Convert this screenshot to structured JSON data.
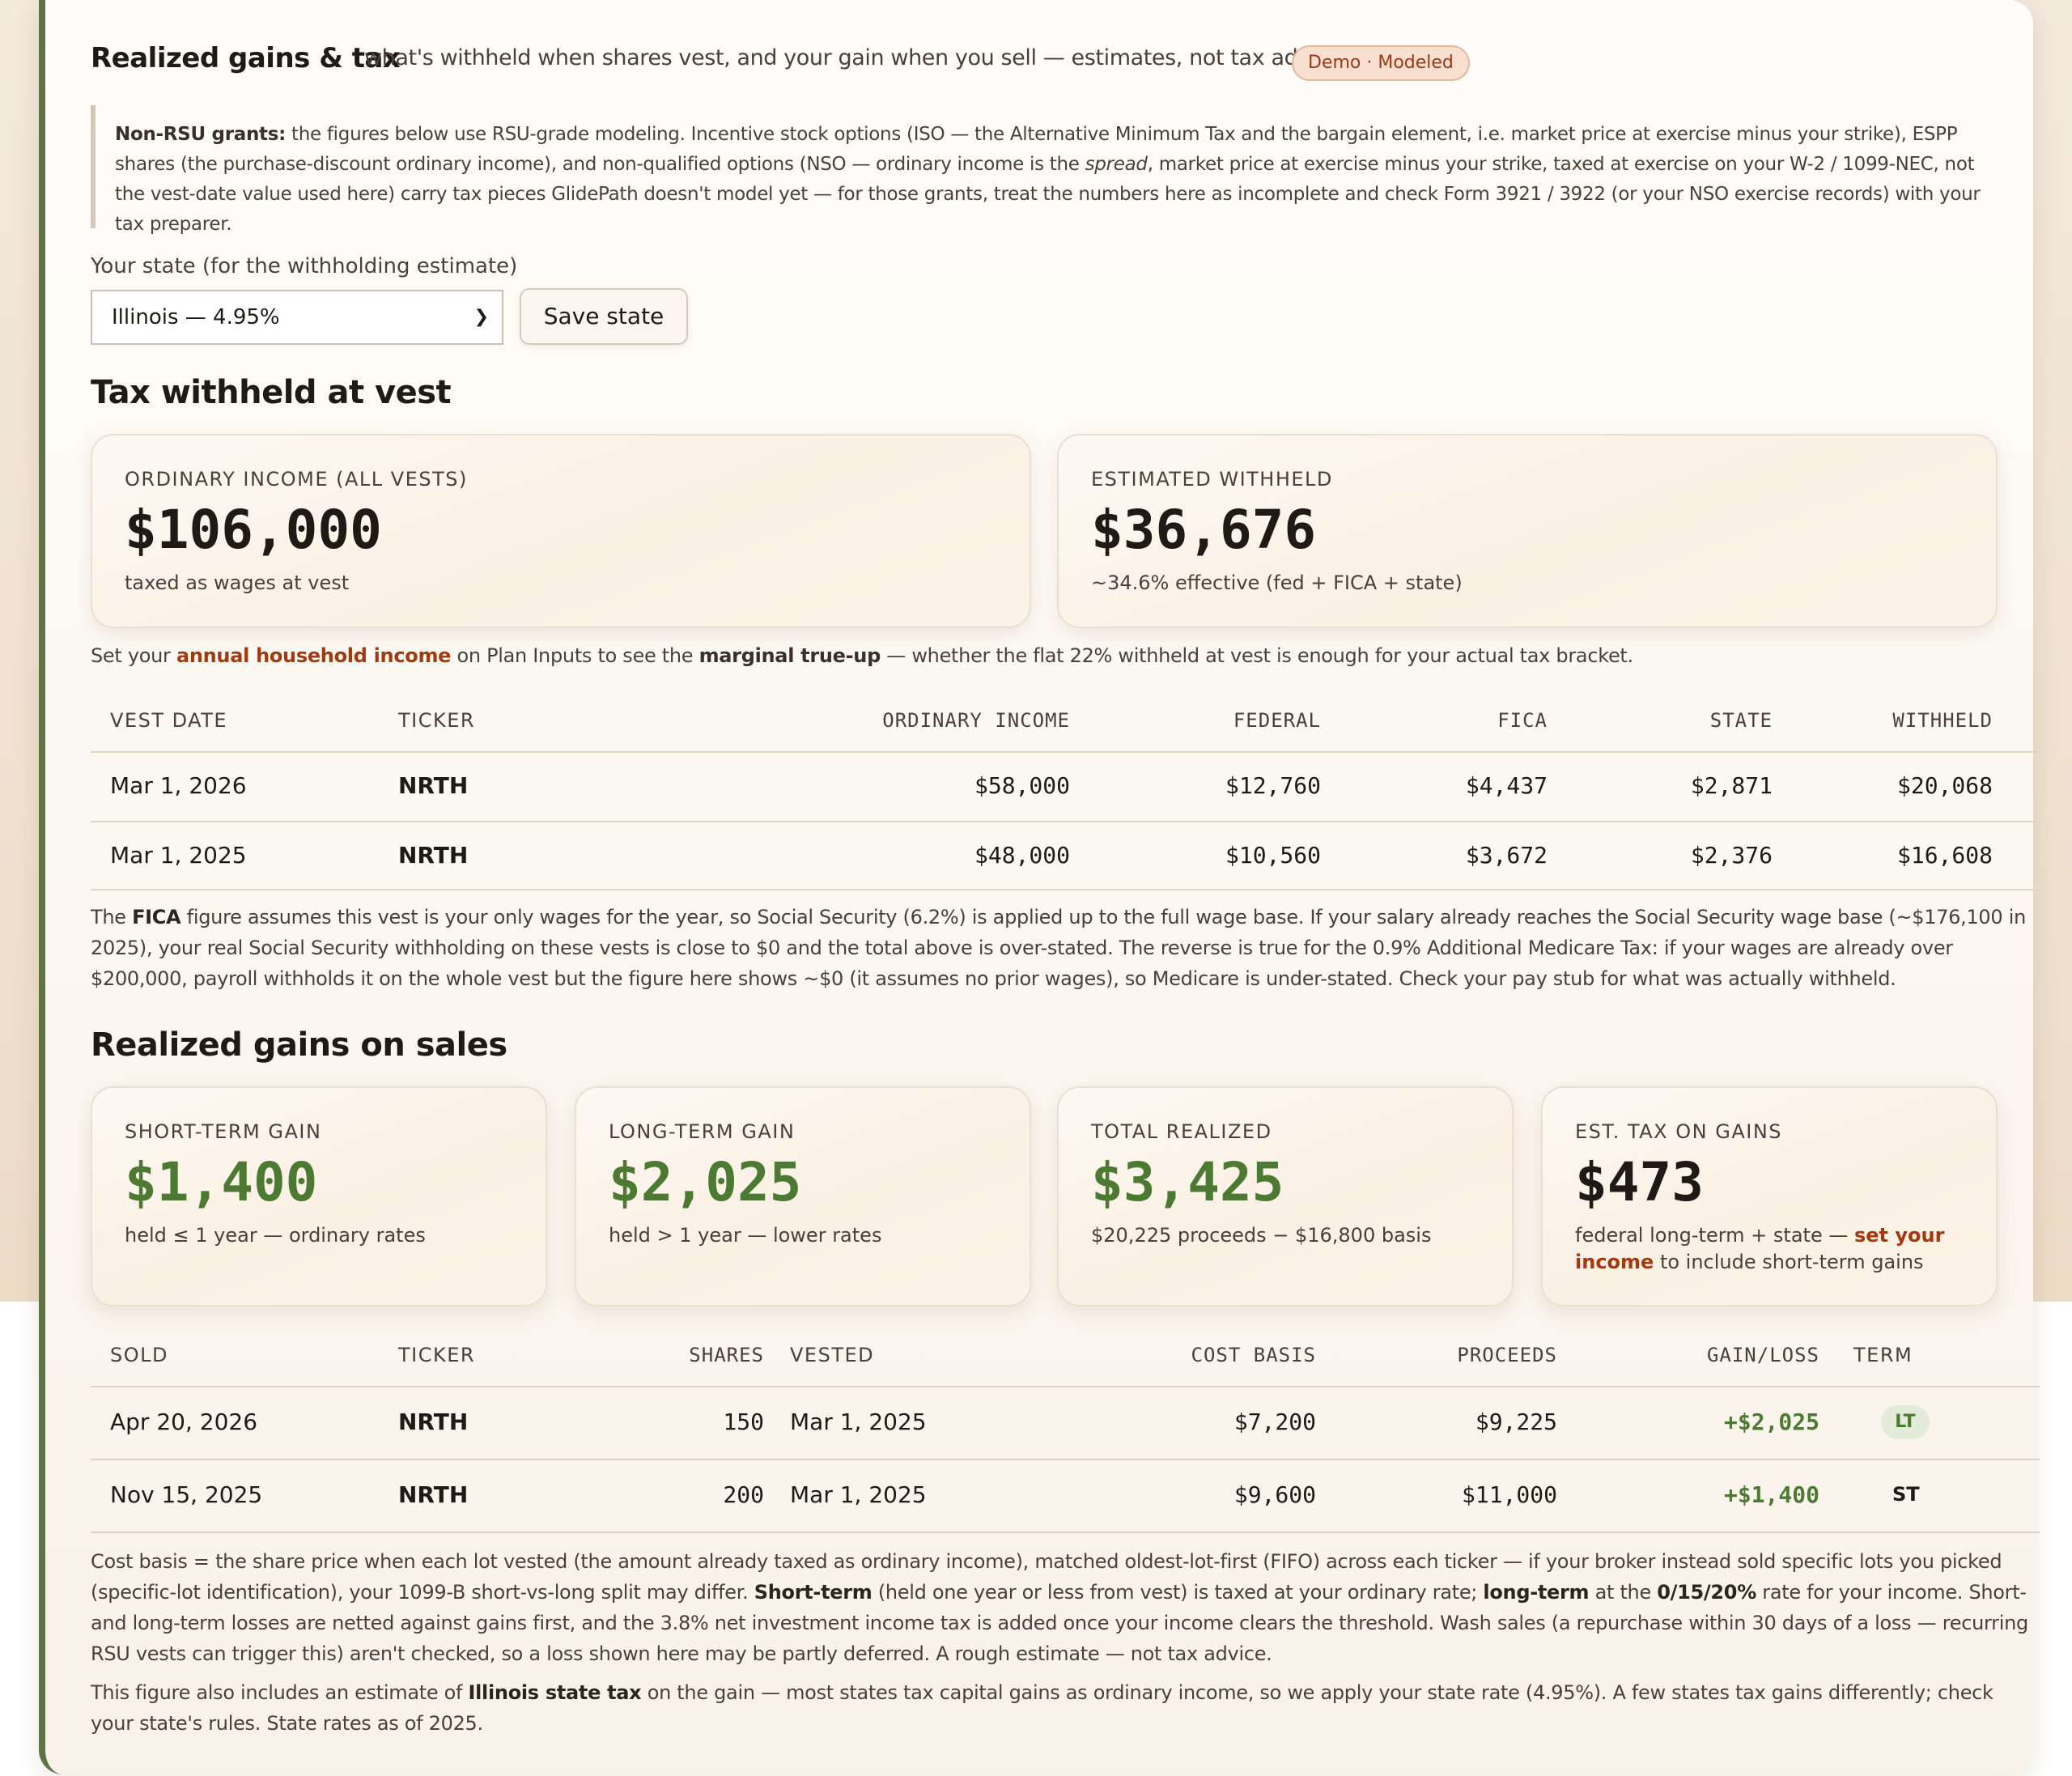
{
  "header": {
    "title": "Realized gains & tax",
    "subtitle": "what's withheld when shares vest, and your gain when you sell — estimates, not tax advice",
    "badge": "Demo · Modeled"
  },
  "note": {
    "lead": "Non-RSU grants:",
    "text_1": " the figures below use RSU-grade modeling. Incentive stock options (ISO — the Alternative Minimum Tax and the bargain element, i.e. market price at exercise minus your strike), ESPP shares (the purchase-discount ordinary income), and non-qualified options (NSO — ordinary income is the ",
    "emphasis": "spread",
    "text_2": ", market price at exercise minus your strike, taxed at exercise on your W-2 / 1099-NEC, not the vest-date value used here) carry tax pieces GlidePath doesn't model yet — for those grants, treat the numbers here as incomplete and check Form 3921 / 3922 (or your NSO exercise records) with your tax preparer."
  },
  "state": {
    "label": "Your state (for the withholding estimate)",
    "selected": "Illinois — 4.95%",
    "save_label": "Save state"
  },
  "withheld_section": {
    "heading": "Tax withheld at vest",
    "cards": [
      {
        "label": "ORDINARY INCOME (ALL VESTS)",
        "value": "$106,000",
        "sub": "taxed as wages at vest"
      },
      {
        "label": "ESTIMATED WITHHELD",
        "value": "$36,676",
        "sub": "~34.6% effective (fed + FICA + state)"
      }
    ],
    "hint": {
      "pre": "Set your ",
      "link": "annual household income",
      "mid": " on Plan Inputs to see the ",
      "bold": "marginal true-up",
      "post": " — whether the flat 22% withheld at vest is enough for your actual tax bracket."
    },
    "table": {
      "headers": {
        "vest_date": "VEST DATE",
        "ticker": "TICKER",
        "ordinary": "ORDINARY INCOME",
        "federal": "FEDERAL",
        "fica": "FICA",
        "state": "STATE",
        "withheld": "WITHHELD"
      },
      "rows": [
        {
          "vest_date": "Mar 1, 2026",
          "ticker": "NRTH",
          "ordinary": "$58,000",
          "federal": "$12,760",
          "fica": "$4,437",
          "state": "$2,871",
          "withheld": "$20,068"
        },
        {
          "vest_date": "Mar 1, 2025",
          "ticker": "NRTH",
          "ordinary": "$48,000",
          "federal": "$10,560",
          "fica": "$3,672",
          "state": "$2,376",
          "withheld": "$16,608"
        }
      ]
    },
    "fica_note": {
      "pre": "The ",
      "bold": "FICA",
      "post": " figure assumes this vest is your only wages for the year, so Social Security (6.2%) is applied up to the full wage base. If your salary already reaches the Social Security wage base (~$176,100 in 2025), your real Social Security withholding on these vests is close to $0 and the total above is over-stated. The reverse is true for the 0.9% Additional Medicare Tax: if your wages are already over $200,000, payroll withholds it on the whole vest but the figure here shows ~$0 (it assumes no prior wages), so Medicare is under-stated. Check your pay stub for what was actually withheld."
    }
  },
  "gains_section": {
    "heading": "Realized gains on sales",
    "cards": [
      {
        "label": "SHORT-TERM GAIN",
        "value": "$1,400",
        "sub": "held ≤ 1 year — ordinary rates"
      },
      {
        "label": "LONG-TERM GAIN",
        "value": "$2,025",
        "sub": "held > 1 year — lower rates"
      },
      {
        "label": "TOTAL REALIZED",
        "value": "$3,425",
        "sub": "$20,225 proceeds − $16,800 basis"
      },
      {
        "label": "EST. TAX ON GAINS",
        "value": "$473",
        "sub_pre": "federal long-term + state — ",
        "sub_link": "set your income",
        "sub_post": " to include short-term gains"
      }
    ],
    "table": {
      "headers": {
        "sold": "SOLD",
        "ticker": "TICKER",
        "shares": "SHARES",
        "vested": "VESTED",
        "cost_basis": "COST BASIS",
        "proceeds": "PROCEEDS",
        "gain_loss": "GAIN/LOSS",
        "term": "TERM"
      },
      "rows": [
        {
          "sold": "Apr 20, 2026",
          "ticker": "NRTH",
          "shares": "150",
          "vested": "Mar 1, 2025",
          "cost_basis": "$7,200",
          "proceeds": "$9,225",
          "gain_loss": "+$2,025",
          "term": "LT"
        },
        {
          "sold": "Nov 15, 2025",
          "ticker": "NRTH",
          "shares": "200",
          "vested": "Mar 1, 2025",
          "cost_basis": "$9,600",
          "proceeds": "$11,000",
          "gain_loss": "+$1,400",
          "term": "ST"
        }
      ]
    },
    "basis_note": {
      "t1": "Cost basis = the share price when each lot vested (the amount already taxed as ordinary income), matched oldest-lot-first (FIFO) across each ticker — if your broker instead sold specific lots you picked (specific-lot identification), your 1099-B short-vs-long split may differ. ",
      "b1": "Short-term",
      "t2": " (held one year or less from vest) is taxed at your ordinary rate; ",
      "b2": "long-term",
      "t3": " at the ",
      "b3": "0/15/20%",
      "t4": " rate for your income. Short- and long-term losses are netted against gains first, and the 3.8% net investment income tax is added once your income clears the threshold. Wash sales (a repurchase within 30 days of a loss — recurring RSU vests can trigger this) aren't checked, so a loss shown here may be partly deferred. A rough estimate — not tax advice."
    },
    "state_note": {
      "pre": "This figure also includes an estimate of ",
      "bold": "Illinois state tax",
      "post": " on the gain — most states tax capital gains as ordinary income, so we apply your state rate (4.95%). A few states tax gains differently; check your state's rules. State rates as of 2025."
    }
  }
}
